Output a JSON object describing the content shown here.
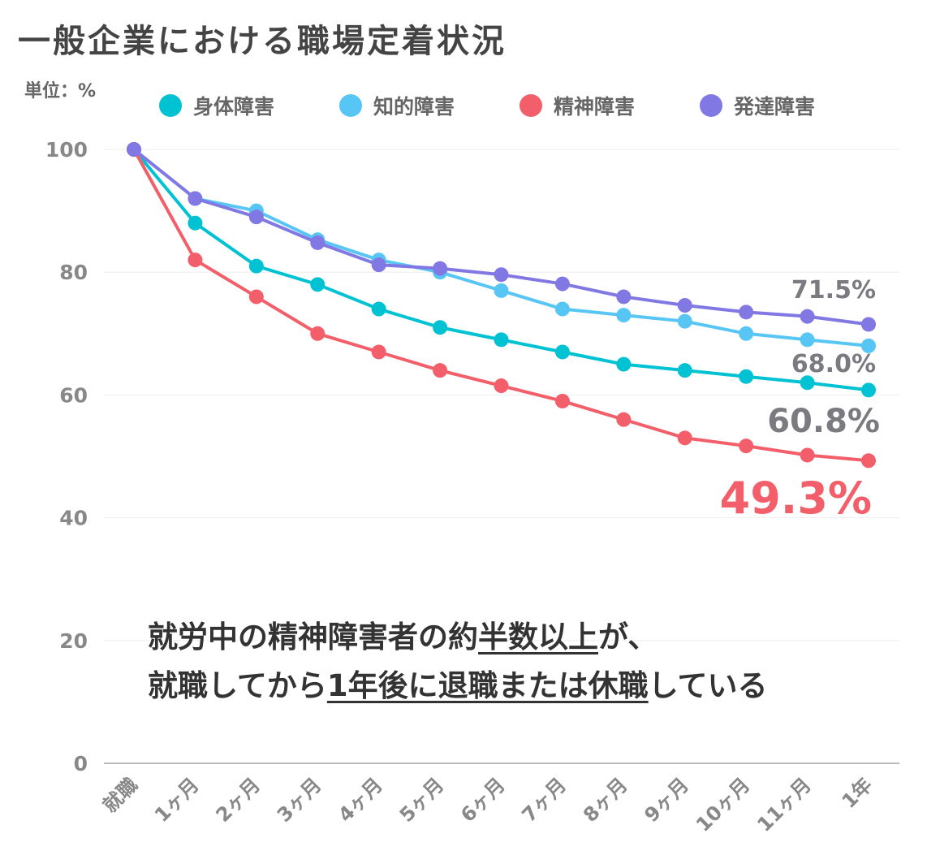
{
  "page": {
    "title": "一般企業における職場定着状況",
    "unit_label": "単位：%"
  },
  "colors": {
    "physical": "#00C2D3",
    "intellectual": "#58C6F5",
    "mental": "#F25F6A",
    "developmental": "#8178E3",
    "gray_label": "#7A7A80",
    "axis_text": "#888888",
    "grid": "#EEEEEE"
  },
  "end_labels": {
    "developmental": "71.5%",
    "intellectual": "68.0%",
    "physical": "60.8%",
    "mental": "49.3%"
  },
  "annotation": {
    "line1_a": "就労中の精神障害者の約",
    "line1_u": "半数以上",
    "line1_b": "が、",
    "line2_a": "就職してから",
    "line2_u": "1年後に退職または休職",
    "line2_b": "している"
  },
  "chart_data": {
    "type": "line",
    "categories": [
      "就職",
      "1ヶ月",
      "2ヶ月",
      "3ヶ月",
      "4ヶ月",
      "5ヶ月",
      "6ヶ月",
      "7ヶ月",
      "8ヶ月",
      "9ヶ月",
      "10ヶ月",
      "11ヶ月",
      "1年"
    ],
    "ylim": [
      0,
      100
    ],
    "yticks": [
      0,
      20,
      40,
      60,
      80,
      100
    ],
    "grid": true,
    "legend_position": "top",
    "series": [
      {
        "name": "身体障害",
        "key": "physical",
        "values": [
          100,
          88,
          81,
          78,
          74,
          71,
          69,
          67,
          65,
          64,
          63,
          62,
          60.8
        ]
      },
      {
        "name": "知的障害",
        "key": "intellectual",
        "values": [
          100,
          92,
          90,
          85.3,
          82,
          80,
          77,
          74,
          73,
          72,
          70,
          69,
          68.0
        ]
      },
      {
        "name": "精神障害",
        "key": "mental",
        "values": [
          100,
          82,
          76,
          70,
          67,
          64,
          61.5,
          59,
          56,
          53,
          51.7,
          50.2,
          49.3
        ]
      },
      {
        "name": "発達障害",
        "key": "developmental",
        "values": [
          100,
          92,
          89,
          84.8,
          81.2,
          80.6,
          79.6,
          78.1,
          76,
          74.6,
          73.5,
          72.8,
          71.5
        ]
      }
    ]
  }
}
